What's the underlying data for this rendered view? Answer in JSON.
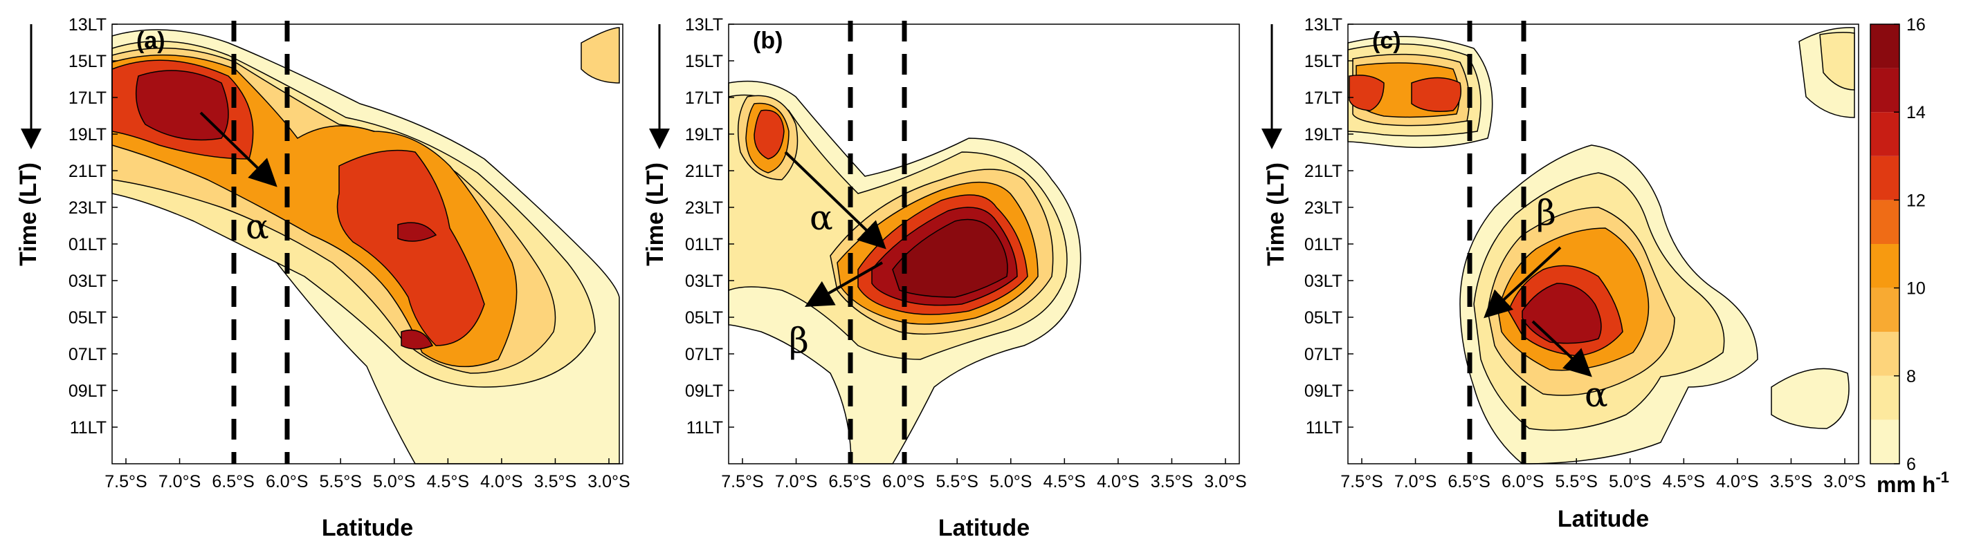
{
  "chart_data": [
    {
      "type": "contour",
      "panel_label": "(a)",
      "xlabel": "Latitude",
      "ylabel": "Time (LT)",
      "x_ticks": [
        "7.5°S",
        "7.0°S",
        "6.5°S",
        "6.0°S",
        "5.5°S",
        "5.0°S",
        "4.5°S",
        "4.0°S",
        "3.5°S",
        "3.0°S"
      ],
      "y_ticks": [
        "13LT",
        "15LT",
        "17LT",
        "19LT",
        "21LT",
        "23LT",
        "01LT",
        "03LT",
        "05LT",
        "07LT",
        "09LT",
        "11LT"
      ],
      "dashed_lines_latitude": [
        6.5,
        6.0
      ],
      "annotations": [
        {
          "text": "α",
          "lat": 6.35,
          "time": "00LT"
        },
        {
          "arrow_from": {
            "lat": 6.85,
            "time": "18.5LT"
          },
          "arrow_to": {
            "lat": 6.1,
            "time": "22LT"
          }
        }
      ]
    },
    {
      "type": "contour",
      "panel_label": "(b)",
      "xlabel": "Latitude",
      "ylabel": "Time (LT)",
      "x_ticks": [
        "7.5°S",
        "7.0°S",
        "6.5°S",
        "6.0°S",
        "5.5°S",
        "5.0°S",
        "4.5°S",
        "4.0°S",
        "3.5°S",
        "3.0°S"
      ],
      "y_ticks": [
        "13LT",
        "15LT",
        "17LT",
        "19LT",
        "21LT",
        "23LT",
        "01LT",
        "03LT",
        "05LT",
        "07LT",
        "09LT",
        "11LT"
      ],
      "dashed_lines_latitude": [
        6.5,
        6.0
      ],
      "annotations": [
        {
          "text": "α",
          "lat": 6.8,
          "time": "23.5LT"
        },
        {
          "text": "β",
          "lat": 6.8,
          "time": "06LT"
        },
        {
          "arrow_from": {
            "lat": 7.0,
            "time": "20LT"
          },
          "arrow_to": {
            "lat": 6.1,
            "time": "01LT"
          }
        },
        {
          "arrow_from": {
            "lat": 6.2,
            "time": "01.5LT"
          },
          "arrow_to": {
            "lat": 6.9,
            "time": "04LT"
          }
        }
      ]
    },
    {
      "type": "contour",
      "panel_label": "(c)",
      "xlabel": "Latitude",
      "ylabel": "Time (LT)",
      "x_ticks": [
        "7.5°S",
        "7.0°S",
        "6.5°S",
        "6.0°S",
        "5.5°S",
        "5.0°S",
        "4.5°S",
        "4.0°S",
        "3.5°S",
        "3.0°S"
      ],
      "y_ticks": [
        "13LT",
        "15LT",
        "17LT",
        "19LT",
        "21LT",
        "23LT",
        "01LT",
        "03LT",
        "05LT",
        "07LT",
        "09LT",
        "11LT"
      ],
      "dashed_lines_latitude": [
        6.5,
        6.0
      ],
      "annotations": [
        {
          "text": "β",
          "lat": 5.85,
          "time": "23LT"
        },
        {
          "text": "α",
          "lat": 5.3,
          "time": "08.5LT"
        },
        {
          "arrow_from": {
            "lat": 5.75,
            "time": "00LT"
          },
          "arrow_to": {
            "lat": 6.3,
            "time": "04LT"
          }
        },
        {
          "arrow_from": {
            "lat": 6.0,
            "time": "05LT"
          },
          "arrow_to": {
            "lat": 5.5,
            "time": "07LT"
          }
        }
      ]
    }
  ],
  "colorbar": {
    "ticks": [
      "6",
      "8",
      "10",
      "12",
      "14",
      "16"
    ],
    "unit": "mm h",
    "unit_exponent": "-1",
    "levels": [
      6,
      7,
      8,
      9,
      10,
      11,
      12,
      13,
      14,
      15,
      16
    ],
    "colors": [
      "#fdf6c4",
      "#fde99e",
      "#fdd47b",
      "#f8aa32",
      "#f79a10",
      "#ef6c16",
      "#e03a12",
      "#c81e14",
      "#a50e13",
      "#8a0a0f"
    ]
  }
}
